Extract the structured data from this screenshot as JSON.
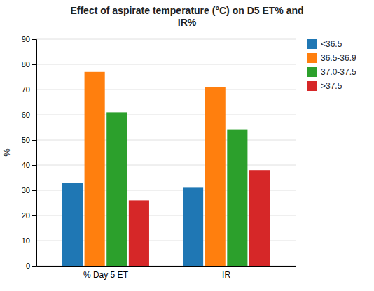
{
  "chart_data": {
    "type": "bar",
    "title": "Effect of aspirate temperature (°C) on D5 ET% and\nIR%",
    "y_label": "%",
    "categories": [
      "% Day 5 ET",
      "IR"
    ],
    "series": [
      {
        "name": "<36.5",
        "values": [
          33,
          31
        ]
      },
      {
        "name": "36.5-36.9",
        "values": [
          77,
          71
        ]
      },
      {
        "name": "37.0-37.5",
        "values": [
          61,
          54
        ]
      },
      {
        "name": ">37.5",
        "values": [
          26,
          38
        ]
      }
    ],
    "ylim": [
      0,
      90
    ],
    "yticks": [
      0,
      10,
      20,
      30,
      40,
      50,
      60,
      70,
      80,
      90
    ],
    "grid": true,
    "legend": "upper right"
  }
}
